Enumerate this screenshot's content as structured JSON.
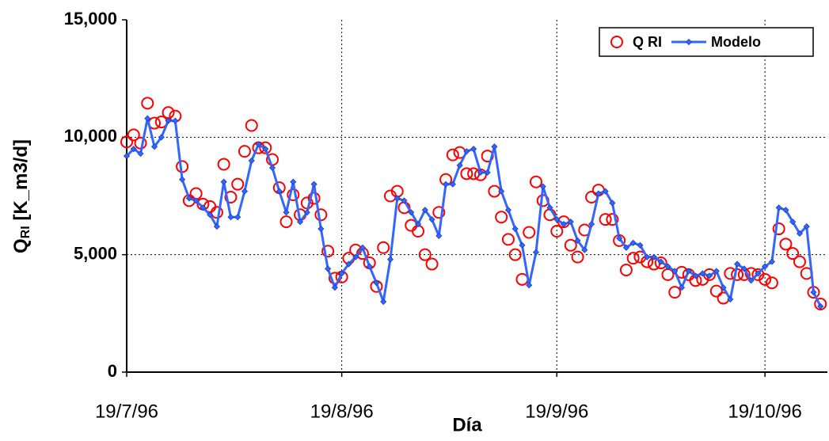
{
  "chart_data": {
    "type": "line",
    "ylabel_main": "Q",
    "ylabel_sub": "RI",
    "ylabel_rest": " [K_m3/d]",
    "xlabel": "Día",
    "x": [
      "19/7/96",
      "20/7/96",
      "21/7/96",
      "22/7/96",
      "23/7/96",
      "24/7/96",
      "25/7/96",
      "26/7/96",
      "27/7/96",
      "28/7/96",
      "29/7/96",
      "30/7/96",
      "31/7/96",
      "1/8/96",
      "2/8/96",
      "3/8/96",
      "4/8/96",
      "5/8/96",
      "6/8/96",
      "7/8/96",
      "8/8/96",
      "9/8/96",
      "10/8/96",
      "11/8/96",
      "12/8/96",
      "13/8/96",
      "14/8/96",
      "15/8/96",
      "16/8/96",
      "17/8/96",
      "18/8/96",
      "19/8/96",
      "20/8/96",
      "21/8/96",
      "22/8/96",
      "23/8/96",
      "24/8/96",
      "25/8/96",
      "26/8/96",
      "27/8/96",
      "28/8/96",
      "29/8/96",
      "30/8/96",
      "31/8/96",
      "1/9/96",
      "2/9/96",
      "3/9/96",
      "4/9/96",
      "5/9/96",
      "6/9/96",
      "7/9/96",
      "8/9/96",
      "9/9/96",
      "10/9/96",
      "11/9/96",
      "12/9/96",
      "13/9/96",
      "14/9/96",
      "15/9/96",
      "16/9/96",
      "17/9/96",
      "18/9/96",
      "19/9/96",
      "20/9/96",
      "21/9/96",
      "22/9/96",
      "23/9/96",
      "24/9/96",
      "25/9/96",
      "26/9/96",
      "27/9/96",
      "28/9/96",
      "29/9/96",
      "30/9/96",
      "1/10/96",
      "2/10/96",
      "3/10/96",
      "4/10/96",
      "5/10/96",
      "6/10/96",
      "7/10/96",
      "8/10/96",
      "9/10/96",
      "10/10/96",
      "11/10/96",
      "12/10/96",
      "13/10/96",
      "14/10/96",
      "15/10/96",
      "16/10/96",
      "17/10/96",
      "18/10/96",
      "19/10/96",
      "20/10/96",
      "21/10/96",
      "22/10/96",
      "23/10/96",
      "24/10/96",
      "25/10/96",
      "26/10/96",
      "27/10/96"
    ],
    "series": [
      {
        "name": "Q RI",
        "color": "#ff0000",
        "marker": "circle",
        "line": false,
        "values": [
          9800,
          10100,
          9750,
          11450,
          10600,
          10650,
          11050,
          10900,
          8750,
          7300,
          7600,
          7150,
          7050,
          6800,
          8850,
          7450,
          8000,
          9400,
          10500,
          9550,
          9550,
          9050,
          7850,
          6400,
          7550,
          6700,
          7200,
          7400,
          6700,
          5150,
          4000,
          4050,
          4850,
          5200,
          5050,
          4650,
          3650,
          5300,
          7500,
          7700,
          7000,
          6250,
          6000,
          5000,
          4600,
          6800,
          8200,
          9250,
          9350,
          8450,
          8450,
          8400,
          9200,
          7700,
          6600,
          5650,
          5000,
          3950,
          5950,
          8100,
          7300,
          6700,
          6000,
          6400,
          5400,
          4900,
          6050,
          7450,
          7750,
          6500,
          6500,
          5600,
          4350,
          4850,
          4900,
          4700,
          4600,
          4650,
          4150,
          3400,
          4250,
          4150,
          3900,
          3950,
          4150,
          3450,
          3150,
          4200,
          4150,
          4150,
          4200,
          4150,
          3950,
          3800,
          6100,
          5450,
          5050,
          4700,
          4200,
          3400,
          2900
        ]
      },
      {
        "name": "Modelo",
        "color": "#3366ff",
        "marker": "diamond",
        "line": true,
        "values": [
          9200,
          9500,
          9300,
          10800,
          9600,
          10000,
          10700,
          10700,
          8200,
          7400,
          7300,
          7000,
          6700,
          6200,
          8100,
          6600,
          6600,
          7700,
          9000,
          9700,
          9500,
          8700,
          7700,
          6800,
          8100,
          6400,
          6800,
          8000,
          6100,
          4400,
          3600,
          4200,
          4600,
          4900,
          5300,
          4500,
          3800,
          3000,
          4800,
          7400,
          7300,
          6800,
          6300,
          6900,
          6500,
          5800,
          8000,
          8000,
          8800,
          9400,
          9500,
          8500,
          8500,
          9600,
          7700,
          6900,
          6100,
          5400,
          3700,
          5100,
          7900,
          7000,
          6500,
          6300,
          6400,
          5600,
          5200,
          6300,
          7600,
          7700,
          7200,
          5700,
          5300,
          5500,
          5400,
          4900,
          4900,
          4700,
          4500,
          4300,
          3600,
          4300,
          4100,
          4200,
          4100,
          4300,
          3600,
          3100,
          4600,
          4400,
          3900,
          4200,
          4500,
          4700,
          7000,
          6900,
          6400,
          5900,
          6200,
          3400,
          2800
        ]
      }
    ],
    "xlim": [
      "19/7/96",
      "28/10/96"
    ],
    "xticks": [
      "19/7/96",
      "19/8/96",
      "19/9/96",
      "19/10/96"
    ],
    "ylim": [
      0,
      15000
    ],
    "yticks": [
      {
        "value": 0,
        "label": "0"
      },
      {
        "value": 5000,
        "label": "5,000"
      },
      {
        "value": 10000,
        "label": "10,000"
      },
      {
        "value": 15000,
        "label": "15,000"
      }
    ],
    "grid": true,
    "legend": "upper right"
  }
}
